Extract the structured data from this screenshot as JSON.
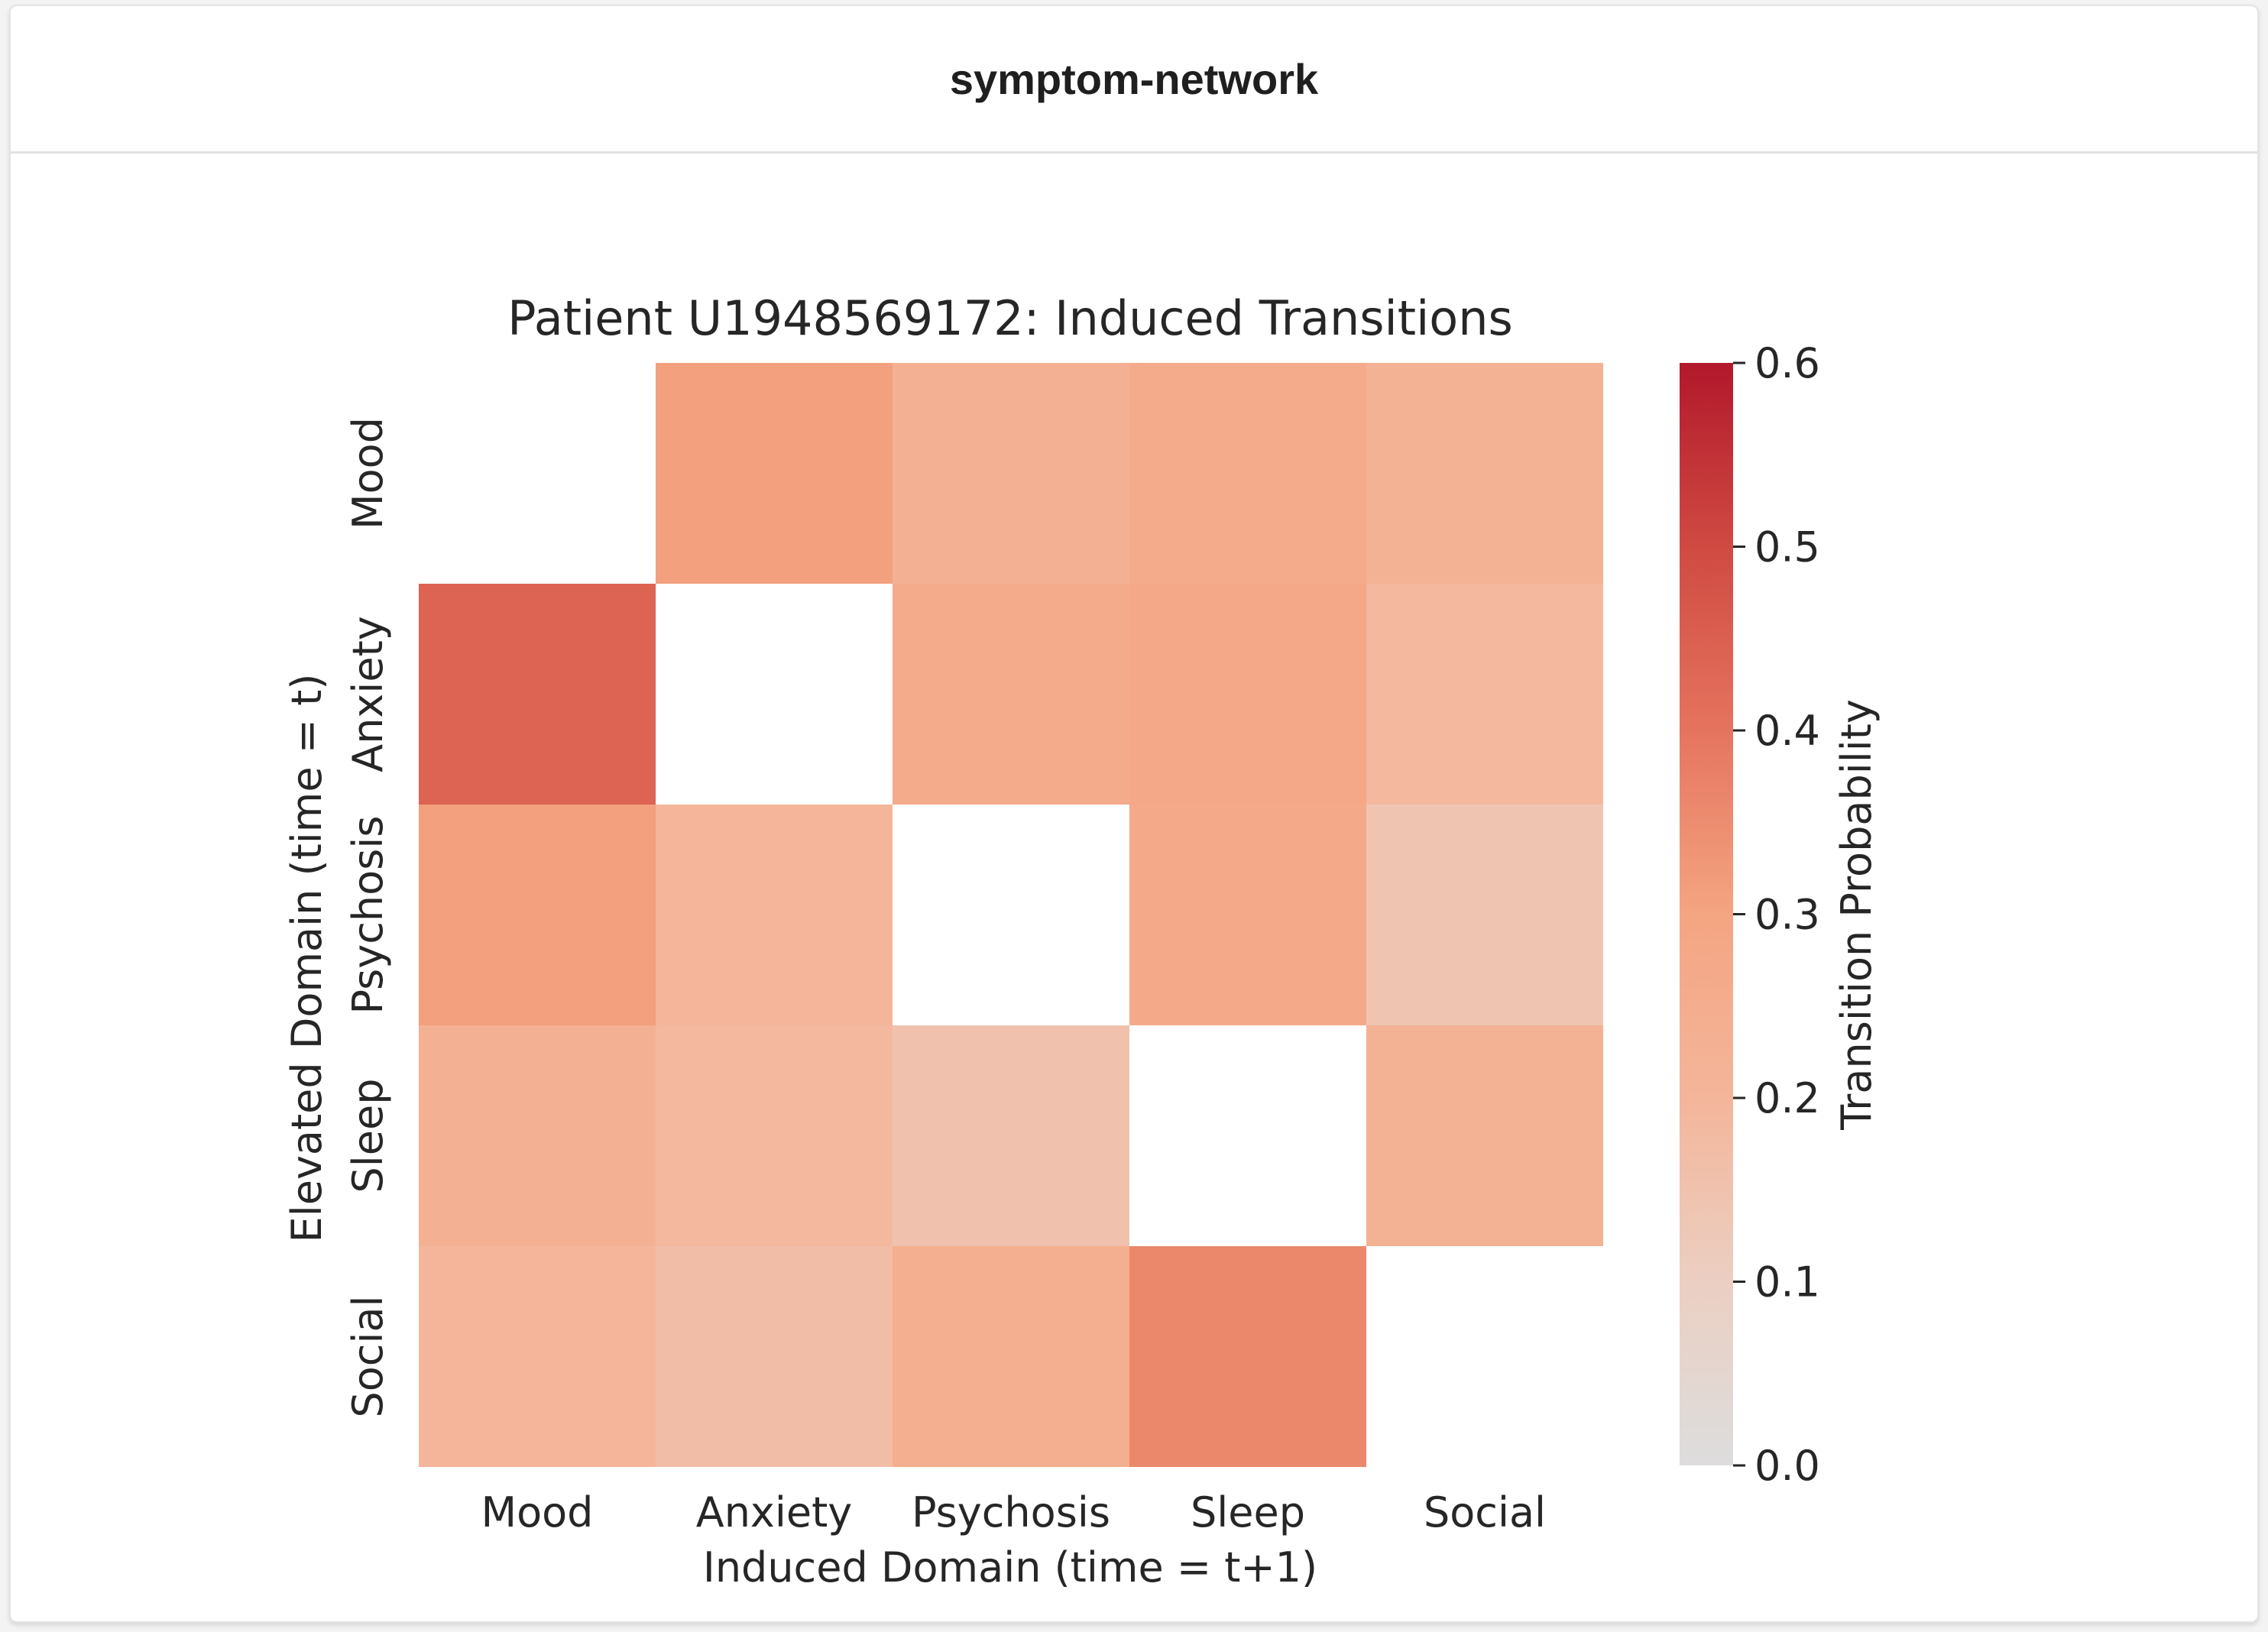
{
  "card": {
    "title": "symptom-network"
  },
  "chart_data": {
    "type": "heatmap",
    "title": "Patient U1948569172: Induced Transitions",
    "xlabel": "Induced Domain (time = t+1)",
    "ylabel": "Elevated Domain (time = t)",
    "x_categories": [
      "Mood",
      "Anxiety",
      "Psychosis",
      "Sleep",
      "Social"
    ],
    "y_categories": [
      "Mood",
      "Anxiety",
      "Psychosis",
      "Sleep",
      "Social"
    ],
    "values": [
      [
        null,
        0.31,
        0.23,
        0.26,
        0.22
      ],
      [
        0.44,
        null,
        0.26,
        0.28,
        0.19
      ],
      [
        0.31,
        0.2,
        null,
        0.27,
        0.14
      ],
      [
        0.23,
        0.19,
        0.15,
        null,
        0.22
      ],
      [
        0.2,
        0.17,
        0.24,
        0.36,
        null
      ]
    ],
    "colorbar": {
      "label": "Transition Probability",
      "range": [
        0.0,
        0.6
      ],
      "ticks": [
        "0.0",
        "0.1",
        "0.2",
        "0.3",
        "0.4",
        "0.5",
        "0.6"
      ],
      "colors": {
        "low": "#dddddd",
        "mid": "#f4a582",
        "high": "#b2182b"
      }
    },
    "diagonal": "blank"
  }
}
